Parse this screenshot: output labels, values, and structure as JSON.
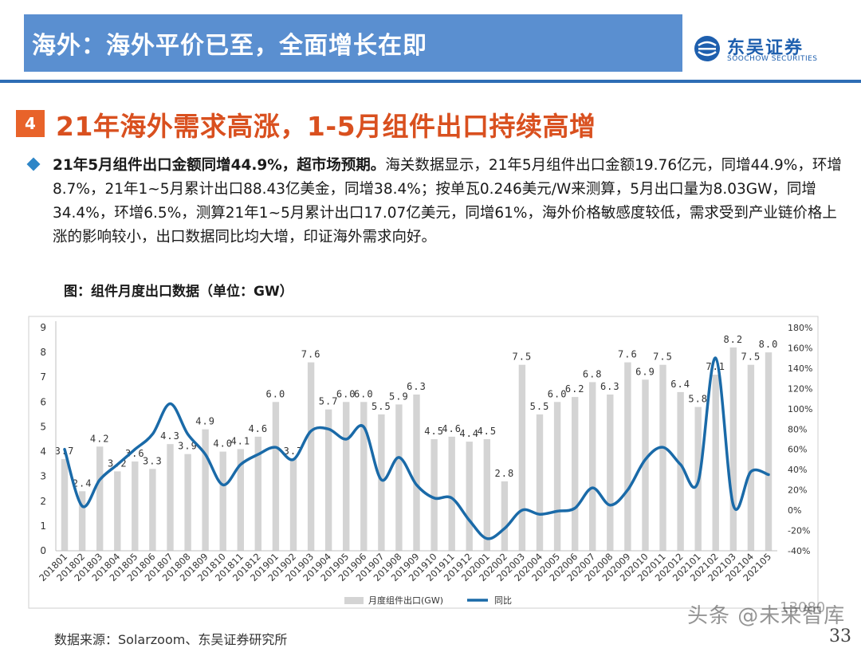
{
  "header": {
    "title": "海外：海外平价已至，全面增长在即"
  },
  "logo": {
    "cn": "东吴证券",
    "en": "SOOCHOW SECURITIES",
    "mark": "SCS"
  },
  "section": {
    "number": "4",
    "title": "21年海外需求高涨，1-5月组件出口持续高增"
  },
  "paragraph": {
    "bold": "21年5月组件出口金额同增44.9%，超市场预期。",
    "text": "海关数据显示，21年5月组件出口金额19.76亿元，同增44.9%，环增8.7%，21年1~5月累计出口88.43亿美金，同增38.4%；按单瓦0.246美元/W来测算，5月出口量为8.03GW，同增34.4%，环增6.5%，测算21年1~5月累计出口17.07亿美元，同增61%，海外价格敏感度较低，需求受到产业链价格上涨的影响较小，出口数据同比均大增，印证海外需求向好。"
  },
  "chart_caption": "图：组件月度出口数据（单位：GW）",
  "chart_data": {
    "type": "bar",
    "categories": [
      "201801",
      "201802",
      "201803",
      "201804",
      "201805",
      "201806",
      "201807",
      "201808",
      "201809",
      "201810",
      "201811",
      "201812",
      "201901",
      "201902",
      "201903",
      "201904",
      "201905",
      "201906",
      "201907",
      "201908",
      "201909",
      "201910",
      "201911",
      "201912",
      "202001",
      "202002",
      "202003",
      "202004",
      "202005",
      "202006",
      "202007",
      "202008",
      "202009",
      "202010",
      "202011",
      "202012",
      "202101",
      "202102",
      "202103",
      "202104",
      "202105"
    ],
    "series": [
      {
        "name": "月度组件出口(GW)",
        "kind": "bar",
        "axis": "left",
        "color": "#d4d4d4",
        "values": [
          3.7,
          2.4,
          4.2,
          3.2,
          3.6,
          3.3,
          4.3,
          3.9,
          4.9,
          4.0,
          4.1,
          4.6,
          6.0,
          3.7,
          7.6,
          5.7,
          6.0,
          6.0,
          5.5,
          5.9,
          6.3,
          4.5,
          4.6,
          4.4,
          4.5,
          2.8,
          7.5,
          5.5,
          6.0,
          6.2,
          6.8,
          6.3,
          7.6,
          6.9,
          7.5,
          6.4,
          5.8,
          7.1,
          8.2,
          7.5,
          8.0
        ]
      },
      {
        "name": "同比",
        "kind": "line",
        "axis": "right",
        "color": "#1a6aa8",
        "values": [
          60,
          4,
          30,
          45,
          60,
          75,
          105,
          75,
          55,
          25,
          45,
          55,
          62,
          50,
          78,
          80,
          70,
          82,
          30,
          52,
          25,
          12,
          12,
          -10,
          -28,
          -18,
          0,
          -4,
          -1,
          2,
          22,
          5,
          20,
          50,
          62,
          45,
          28,
          150,
          5,
          38,
          35
        ]
      }
    ],
    "y_left": {
      "min": 0,
      "max": 9,
      "ticks": [
        "0",
        "1",
        "2",
        "3",
        "4",
        "5",
        "6",
        "7",
        "8",
        "9"
      ]
    },
    "y_right": {
      "min": -40,
      "max": 180,
      "ticks": [
        "-40%",
        "-20%",
        "0%",
        "20%",
        "40%",
        "60%",
        "80%",
        "100%",
        "120%",
        "140%",
        "160%",
        "180%"
      ]
    },
    "bar_labels": [
      "3.7",
      "2.4",
      "4.2",
      "3.2",
      "3.6",
      "3.3",
      "4.3",
      "3.9",
      "4.9",
      "4.0",
      "4.1",
      "4.6",
      "6.0",
      "3.7",
      "7.6",
      "5.7",
      "6.0",
      "6.0",
      "5.5",
      "5.9",
      "6.3",
      "4.5",
      "4.6",
      "4.4",
      "4.5",
      "2.8",
      "7.5",
      "5.5",
      "6.0",
      "6.2",
      "6.8",
      "6.3",
      "7.6",
      "6.9",
      "7.5",
      "6.4",
      "5.8",
      "7.1",
      "8.2",
      "7.5",
      "8.0"
    ],
    "legend": {
      "position": "bottom",
      "bar": "月度组件出口(GW)",
      "line": "同比"
    },
    "grid": false
  },
  "source": "数据来源：Solarzoom、东吴证券研究所",
  "page_number": "33",
  "watermark": {
    "text": "头条 @未来智库",
    "num": "13080"
  }
}
